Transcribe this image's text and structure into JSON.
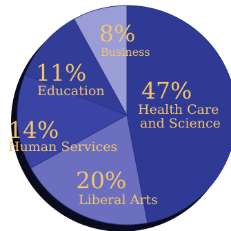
{
  "chart_data": {
    "type": "pie",
    "slices": [
      {
        "label": "Health Care and Science",
        "label_lines": [
          "Health Care",
          "and Science"
        ],
        "value": 47,
        "value_label": "47%",
        "color": "#2e3a93"
      },
      {
        "label": "Liberal Arts",
        "label_lines": [
          "Liberal Arts"
        ],
        "value": 20,
        "value_label": "20%",
        "color": "#6c6fbf"
      },
      {
        "label": "Human Services",
        "label_lines": [
          "Human Services"
        ],
        "value": 14,
        "value_label": "14%",
        "color": "#3a44a4"
      },
      {
        "label": "Education",
        "label_lines": [
          "Education"
        ],
        "value": 11,
        "value_label": "11%",
        "color": "#323d98"
      },
      {
        "label": "Business",
        "label_lines": [
          "Business"
        ],
        "value": 8,
        "value_label": "8%",
        "color": "#9b9dd6"
      }
    ],
    "shadow_color": "#0a0c1e",
    "text_color": "#f2c46d",
    "start_angle_deg": 0,
    "direction": "clockwise"
  }
}
